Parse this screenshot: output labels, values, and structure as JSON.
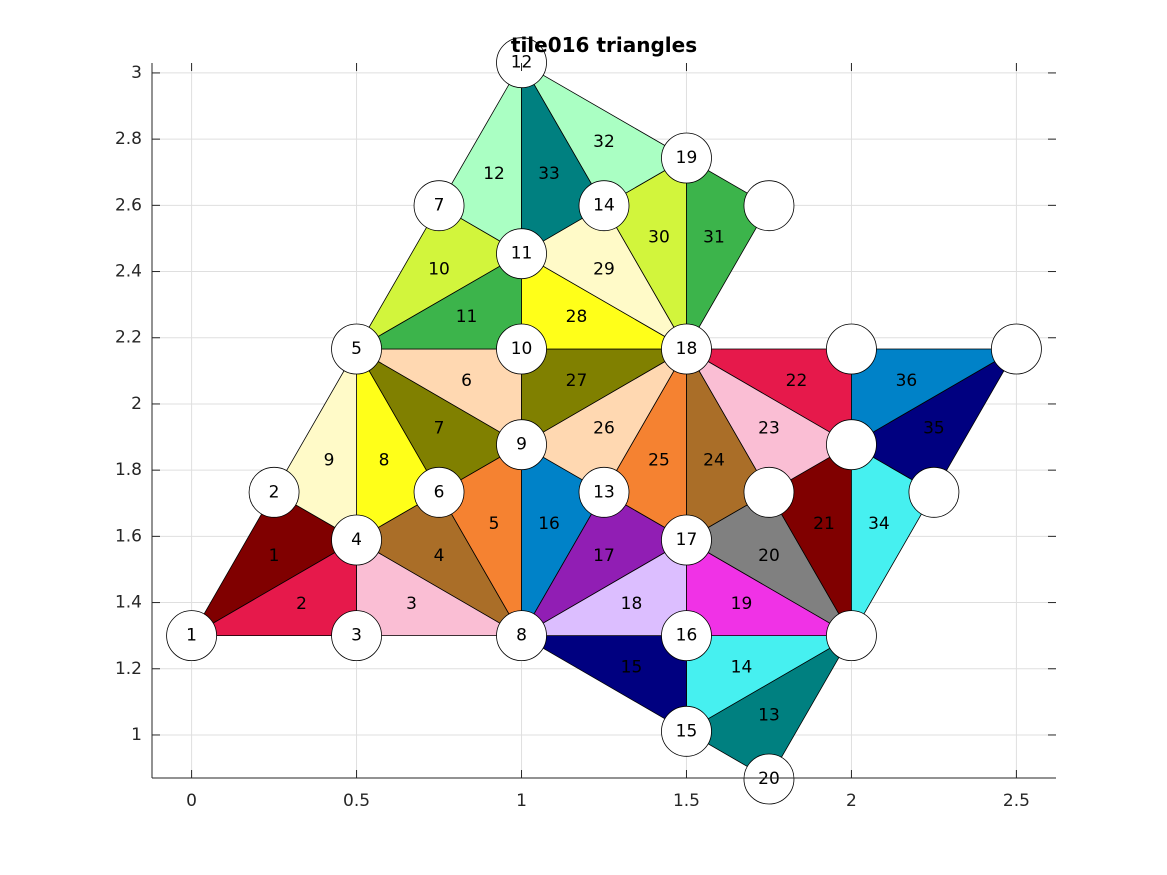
{
  "chart_data": {
    "type": "mesh",
    "title": "tile016 triangles",
    "xlim": [
      -0.12,
      2.62
    ],
    "ylim": [
      0.87,
      3.03
    ],
    "x_ticks": [
      0,
      0.5,
      1,
      1.5,
      2,
      2.5
    ],
    "x_tick_labels": [
      "0",
      "0.5",
      "1",
      "1.5",
      "2",
      "2.5"
    ],
    "y_ticks": [
      1,
      1.2,
      1.4,
      1.6,
      1.8,
      2,
      2.2,
      2.4,
      2.6,
      2.8,
      3
    ],
    "y_tick_labels": [
      "1",
      "1.2",
      "1.4",
      "1.6",
      "1.8",
      "2",
      "2.2",
      "2.4",
      "2.6",
      "2.8",
      "3"
    ],
    "grid": true,
    "nodes": [
      {
        "id": "1",
        "label": "1",
        "x": 0,
        "y": 1.3
      },
      {
        "id": "2",
        "label": "2",
        "x": 0.25,
        "y": 1.733
      },
      {
        "id": "3",
        "label": "3",
        "x": 0.5,
        "y": 1.3
      },
      {
        "id": "4",
        "label": "4",
        "x": 0.5,
        "y": 1.589
      },
      {
        "id": "5",
        "label": "5",
        "x": 0.5,
        "y": 2.166
      },
      {
        "id": "6",
        "label": "6",
        "x": 0.75,
        "y": 1.733
      },
      {
        "id": "7",
        "label": "7",
        "x": 0.75,
        "y": 2.599
      },
      {
        "id": "8",
        "label": "8",
        "x": 1,
        "y": 1.3
      },
      {
        "id": "9",
        "label": "9",
        "x": 1,
        "y": 1.877
      },
      {
        "id": "10",
        "label": "10",
        "x": 1,
        "y": 2.166
      },
      {
        "id": "11",
        "label": "11",
        "x": 1,
        "y": 2.454
      },
      {
        "id": "12",
        "label": "12",
        "x": 1,
        "y": 3.031
      },
      {
        "id": "13",
        "label": "13",
        "x": 1.25,
        "y": 1.733
      },
      {
        "id": "14",
        "label": "14",
        "x": 1.25,
        "y": 2.599
      },
      {
        "id": "15",
        "label": "15",
        "x": 1.5,
        "y": 1.011
      },
      {
        "id": "16",
        "label": "16",
        "x": 1.5,
        "y": 1.3
      },
      {
        "id": "17",
        "label": "17",
        "x": 1.5,
        "y": 1.589
      },
      {
        "id": "18",
        "label": "18",
        "x": 1.5,
        "y": 2.166
      },
      {
        "id": "19",
        "label": "19",
        "x": 1.5,
        "y": 2.743
      },
      {
        "id": "20",
        "label": "20",
        "x": 1.75,
        "y": 0.867
      },
      {
        "id": "n21",
        "label": "",
        "x": 1.75,
        "y": 1.733
      },
      {
        "id": "n22",
        "label": "",
        "x": 1.75,
        "y": 2.599
      },
      {
        "id": "n23",
        "label": "",
        "x": 2,
        "y": 1.3
      },
      {
        "id": "n24",
        "label": "",
        "x": 2,
        "y": 1.877
      },
      {
        "id": "n25",
        "label": "",
        "x": 2,
        "y": 2.166
      },
      {
        "id": "n26",
        "label": "",
        "x": 2.25,
        "y": 1.733
      },
      {
        "id": "n27",
        "label": "",
        "x": 2.5,
        "y": 2.166
      }
    ],
    "triangles": [
      {
        "label": "1",
        "nodes": [
          "1",
          "2",
          "4"
        ],
        "color": "#800000"
      },
      {
        "label": "2",
        "nodes": [
          "1",
          "3",
          "4"
        ],
        "color": "#e6194b"
      },
      {
        "label": "3",
        "nodes": [
          "3",
          "8",
          "4"
        ],
        "color": "#fabed4"
      },
      {
        "label": "4",
        "nodes": [
          "4",
          "8",
          "6"
        ],
        "color": "#aa6e28"
      },
      {
        "label": "5",
        "nodes": [
          "6",
          "8",
          "9"
        ],
        "color": "#f58231"
      },
      {
        "label": "6",
        "nodes": [
          "5",
          "10",
          "9"
        ],
        "color": "#ffd8b1"
      },
      {
        "label": "7",
        "nodes": [
          "5",
          "9",
          "6"
        ],
        "color": "#808000"
      },
      {
        "label": "8",
        "nodes": [
          "5",
          "6",
          "4"
        ],
        "color": "#ffff19"
      },
      {
        "label": "9",
        "nodes": [
          "2",
          "5",
          "4"
        ],
        "color": "#fffac8"
      },
      {
        "label": "10",
        "nodes": [
          "5",
          "7",
          "11"
        ],
        "color": "#d2f53c"
      },
      {
        "label": "11",
        "nodes": [
          "5",
          "11",
          "10"
        ],
        "color": "#3cb44b"
      },
      {
        "label": "12",
        "nodes": [
          "7",
          "12",
          "11"
        ],
        "color": "#aaffc3"
      },
      {
        "label": "13",
        "nodes": [
          "15",
          "20",
          "n23"
        ],
        "color": "#008080"
      },
      {
        "label": "14",
        "nodes": [
          "16",
          "15",
          "n23"
        ],
        "color": "#46f0f0"
      },
      {
        "label": "15",
        "nodes": [
          "8",
          "15",
          "16"
        ],
        "color": "#000080"
      },
      {
        "label": "16",
        "nodes": [
          "8",
          "13",
          "9"
        ],
        "color": "#0082c8"
      },
      {
        "label": "17",
        "nodes": [
          "8",
          "17",
          "13"
        ],
        "color": "#911eb4"
      },
      {
        "label": "18",
        "nodes": [
          "8",
          "16",
          "17"
        ],
        "color": "#dcbeff"
      },
      {
        "label": "19",
        "nodes": [
          "16",
          "n23",
          "17"
        ],
        "color": "#f032e6"
      },
      {
        "label": "20",
        "nodes": [
          "17",
          "n23",
          "n21"
        ],
        "color": "#808080"
      },
      {
        "label": "21",
        "nodes": [
          "n21",
          "n23",
          "n24"
        ],
        "color": "#800000"
      },
      {
        "label": "22",
        "nodes": [
          "18",
          "n25",
          "n24"
        ],
        "color": "#e6194b"
      },
      {
        "label": "23",
        "nodes": [
          "18",
          "n24",
          "n21"
        ],
        "color": "#fabed4"
      },
      {
        "label": "24",
        "nodes": [
          "18",
          "n21",
          "17"
        ],
        "color": "#aa6e28"
      },
      {
        "label": "25",
        "nodes": [
          "13",
          "17",
          "18"
        ],
        "color": "#f58231"
      },
      {
        "label": "26",
        "nodes": [
          "9",
          "13",
          "18"
        ],
        "color": "#ffd8b1"
      },
      {
        "label": "27",
        "nodes": [
          "9",
          "18",
          "10"
        ],
        "color": "#808000"
      },
      {
        "label": "28",
        "nodes": [
          "10",
          "18",
          "11"
        ],
        "color": "#ffff19"
      },
      {
        "label": "29",
        "nodes": [
          "11",
          "18",
          "14"
        ],
        "color": "#fffac8"
      },
      {
        "label": "30",
        "nodes": [
          "14",
          "18",
          "19"
        ],
        "color": "#d2f53c"
      },
      {
        "label": "31",
        "nodes": [
          "18",
          "n22",
          "19"
        ],
        "color": "#3cb44b"
      },
      {
        "label": "32",
        "nodes": [
          "12",
          "14",
          "19"
        ],
        "color": "#aaffc3"
      },
      {
        "label": "33",
        "nodes": [
          "11",
          "14",
          "12"
        ],
        "color": "#008080"
      },
      {
        "label": "34",
        "nodes": [
          "n23",
          "n26",
          "n24"
        ],
        "color": "#46f0f0"
      },
      {
        "label": "35",
        "nodes": [
          "n24",
          "n26",
          "n27"
        ],
        "color": "#000080"
      },
      {
        "label": "36",
        "nodes": [
          "n25",
          "n24",
          "n27"
        ],
        "color": "#0082c8"
      }
    ],
    "colors": {
      "axis": "#262626",
      "grid": "#dfdfdf",
      "edge": "#000000",
      "node_fill": "#ffffff"
    }
  }
}
